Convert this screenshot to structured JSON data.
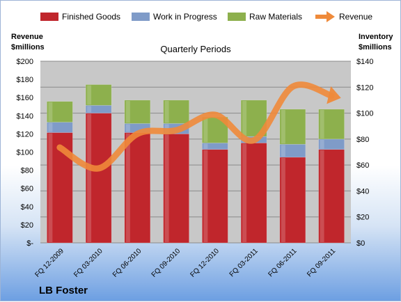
{
  "chart_data": {
    "type": "bar",
    "stacked": true,
    "subtitle": "Quarterly Periods",
    "company": "LB Foster",
    "categories": [
      "FQ 12-2009",
      "FQ 03-2010",
      "FQ 06-2010",
      "FQ 09-2010",
      "FQ 12-2010",
      "FQ 03-2011",
      "FQ 06-2011",
      "FQ 09-2011"
    ],
    "series": [
      {
        "name": "Finished Goods",
        "axis": "right",
        "color": "#c0262c",
        "values": [
          85,
          100,
          85,
          84,
          72,
          77,
          66,
          72
        ]
      },
      {
        "name": "Work in Progress",
        "axis": "right",
        "color": "#7f9bc8",
        "values": [
          8,
          6,
          7,
          8,
          5,
          5,
          10,
          8
        ]
      },
      {
        "name": "Raw Materials",
        "axis": "right",
        "color": "#8db04d",
        "values": [
          16,
          16,
          18,
          18,
          20,
          28,
          27,
          23
        ]
      },
      {
        "name": "Revenue",
        "axis": "left",
        "type": "line",
        "color": "#ef8a3a",
        "values": [
          105,
          82,
          120,
          124,
          141,
          113,
          172,
          162
        ]
      }
    ],
    "left_axis": {
      "title_line1": "Revenue",
      "title_line2": "$millions",
      "min": 0,
      "max": 200,
      "step": 20,
      "tick_labels": [
        "$-",
        "$20",
        "$40",
        "$60",
        "$80",
        "$100",
        "$120",
        "$140",
        "$160",
        "$180",
        "$200"
      ]
    },
    "right_axis": {
      "title_line1": "Inventory",
      "title_line2": "$millions",
      "min": 0,
      "max": 140,
      "step": 20,
      "tick_labels": [
        "$0",
        "$20",
        "$40",
        "$60",
        "$80",
        "$100",
        "$120",
        "$140"
      ]
    },
    "grid": true,
    "legend_position": "top"
  }
}
